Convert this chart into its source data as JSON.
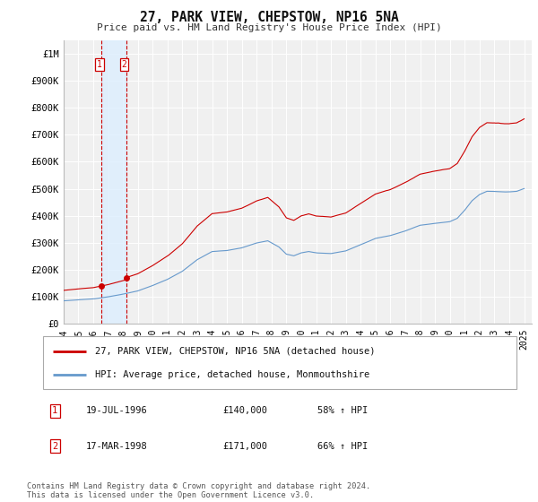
{
  "title": "27, PARK VIEW, CHEPSTOW, NP16 5NA",
  "subtitle": "Price paid vs. HM Land Registry's House Price Index (HPI)",
  "ylabel_ticks": [
    "£0",
    "£100K",
    "£200K",
    "£300K",
    "£400K",
    "£500K",
    "£600K",
    "£700K",
    "£800K",
    "£900K",
    "£1M"
  ],
  "ytick_vals": [
    0,
    100000,
    200000,
    300000,
    400000,
    500000,
    600000,
    700000,
    800000,
    900000,
    1000000
  ],
  "ylim": [
    0,
    1050000
  ],
  "xlim_start": 1994.0,
  "xlim_end": 2025.5,
  "background_color": "#ffffff",
  "plot_bg_color": "#f0f0f0",
  "grid_color": "#ffffff",
  "hpi_color": "#6699cc",
  "price_color": "#cc0000",
  "shade_color": "#ddeeff",
  "transactions": [
    {
      "label": "1",
      "date": "19-JUL-1996",
      "year": 1996.54,
      "price": 140000,
      "pct": "58%",
      "dir": "↑"
    },
    {
      "label": "2",
      "date": "17-MAR-1998",
      "year": 1998.21,
      "price": 171000,
      "pct": "66%",
      "dir": "↑"
    }
  ],
  "legend_line1": "27, PARK VIEW, CHEPSTOW, NP16 5NA (detached house)",
  "legend_line2": "HPI: Average price, detached house, Monmouthshire",
  "footnote": "Contains HM Land Registry data © Crown copyright and database right 2024.\nThis data is licensed under the Open Government Licence v3.0.",
  "xtick_years": [
    1994,
    1995,
    1996,
    1997,
    1998,
    1999,
    2000,
    2001,
    2002,
    2003,
    2004,
    2005,
    2006,
    2007,
    2008,
    2009,
    2010,
    2011,
    2012,
    2013,
    2014,
    2015,
    2016,
    2017,
    2018,
    2019,
    2020,
    2021,
    2022,
    2023,
    2024,
    2025
  ]
}
